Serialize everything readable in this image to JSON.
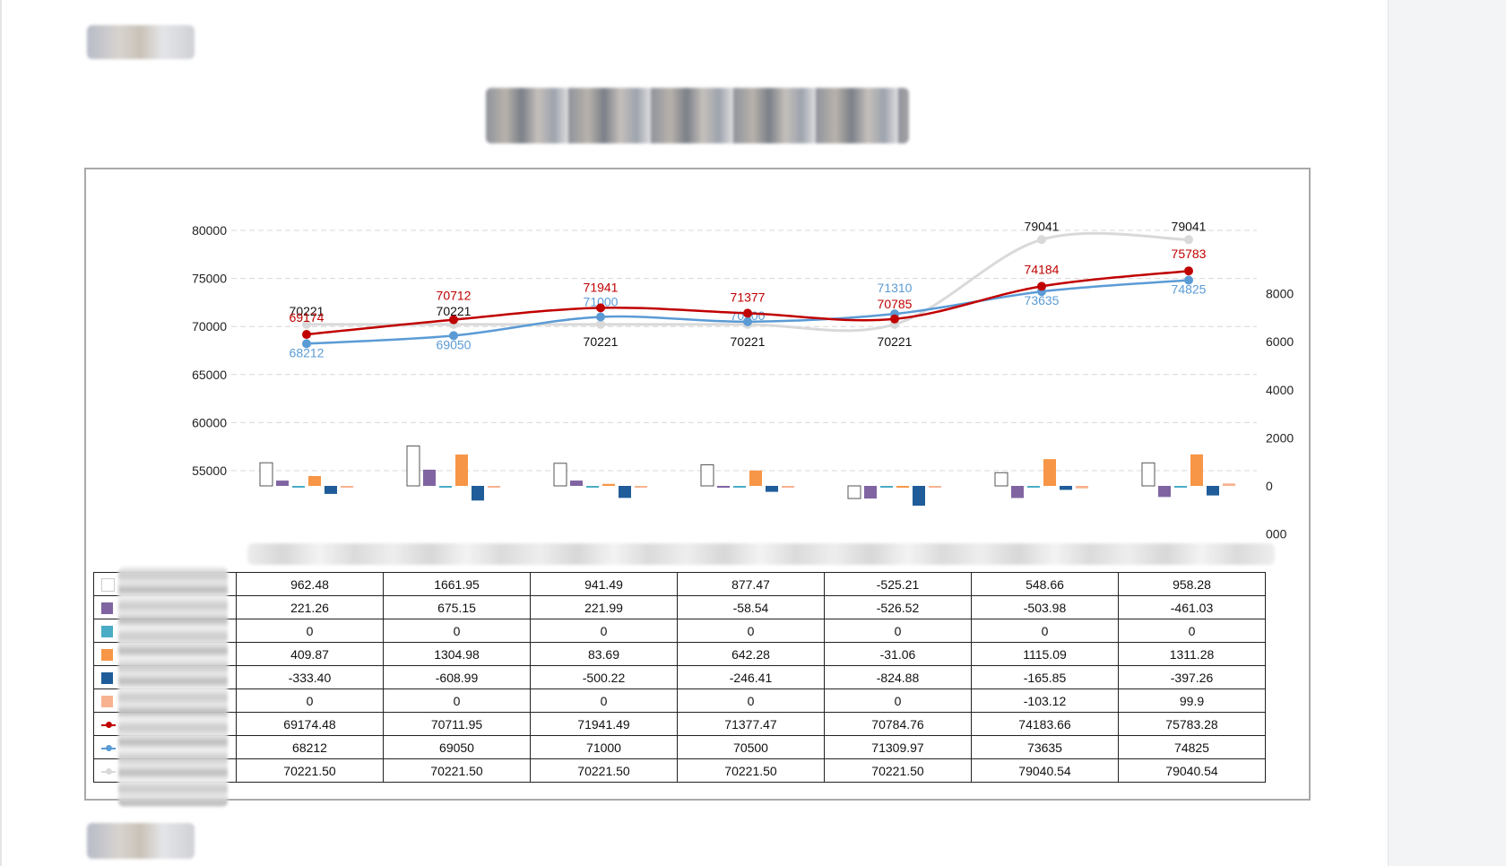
{
  "colors": {
    "series_outline": "#555555",
    "purple": "#8064a2",
    "cyan": "#4bacc6",
    "orange": "#f79646",
    "navy": "#1f5c99",
    "salmon": "#f8b290",
    "red_line": "#c00000",
    "blue_line": "#5b9bd5",
    "gray_line": "#d9d9d9"
  },
  "chart_data": {
    "type": "bar",
    "categories": [
      "",
      "",
      "",
      "",
      "",
      "",
      ""
    ],
    "y_left": {
      "ticks": [
        "80000",
        "75000",
        "70000",
        "65000",
        "60000",
        "55000"
      ],
      "range": [
        55000,
        80000
      ]
    },
    "y_right": {
      "ticks": [
        "8000",
        "6000",
        "4000",
        "2000",
        "0",
        "000"
      ],
      "range": [
        -2000,
        8000
      ]
    },
    "bar_series": [
      {
        "key": "white",
        "color_key": "white",
        "values": [
          962.48,
          1661.95,
          941.49,
          877.47,
          -525.21,
          548.66,
          958.28
        ],
        "labels": [
          "962.48",
          "1661.95",
          "941.49",
          "877.47",
          "-525.21",
          "548.66",
          "958.28"
        ]
      },
      {
        "key": "purple",
        "color_key": "purple",
        "values": [
          221.26,
          675.15,
          221.99,
          -58.54,
          -526.52,
          -503.98,
          -461.03
        ],
        "labels": [
          "221.26",
          "675.15",
          "221.99",
          "-58.54",
          "-526.52",
          "-503.98",
          "-461.03"
        ]
      },
      {
        "key": "cyan",
        "color_key": "cyan",
        "values": [
          0,
          0,
          0,
          0,
          0,
          0,
          0
        ],
        "labels": [
          "0",
          "0",
          "0",
          "0",
          "0",
          "0",
          "0"
        ]
      },
      {
        "key": "orange",
        "color_key": "orange",
        "values": [
          409.87,
          1304.98,
          83.69,
          642.28,
          -31.06,
          1115.09,
          1311.28
        ],
        "labels": [
          "409.87",
          "1304.98",
          "83.69",
          "642.28",
          "-31.06",
          "1115.09",
          "1311.28"
        ]
      },
      {
        "key": "navy",
        "color_key": "navy",
        "values": [
          -333.4,
          -608.99,
          -500.22,
          -246.41,
          -824.88,
          -165.85,
          -397.26
        ],
        "labels": [
          "-333.40",
          "-608.99",
          "-500.22",
          "-246.41",
          "-824.88",
          "-165.85",
          "-397.26"
        ]
      },
      {
        "key": "salmon",
        "color_key": "salmon",
        "values": [
          0,
          0,
          0,
          0,
          0,
          -103.12,
          99.9
        ],
        "labels": [
          "0",
          "0",
          "0",
          "0",
          "0",
          "-103.12",
          "99.9"
        ]
      }
    ],
    "line_series": [
      {
        "key": "red",
        "color_key": "red_line",
        "values": [
          69174.48,
          70711.95,
          71941.49,
          71377.47,
          70784.76,
          74183.66,
          75783.28
        ],
        "labels": [
          "69174.48",
          "70711.95",
          "71941.49",
          "71377.47",
          "70784.76",
          "74183.66",
          "75783.28"
        ],
        "point_labels": [
          "69174",
          "70712",
          "71941",
          "71377",
          "70785",
          "74184",
          "75783"
        ]
      },
      {
        "key": "blue",
        "color_key": "blue_line",
        "values": [
          68212,
          69050,
          71000,
          70500,
          71309.97,
          73635,
          74825
        ],
        "labels": [
          "68212",
          "69050",
          "71000",
          "70500",
          "71309.97",
          "73635",
          "74825"
        ],
        "point_labels": [
          "68212",
          "69050",
          "71000",
          "70500",
          "71310",
          "73635",
          "74825"
        ]
      },
      {
        "key": "gray",
        "color_key": "gray_line",
        "values": [
          70221.5,
          70221.5,
          70221.5,
          70221.5,
          70221.5,
          79040.54,
          79040.54
        ],
        "labels": [
          "70221.50",
          "70221.50",
          "70221.50",
          "70221.50",
          "70221.50",
          "79040.54",
          "79040.54"
        ],
        "point_labels": [
          "70221",
          "70221",
          "70221",
          "70221",
          "70221",
          "79041",
          "79041"
        ]
      }
    ]
  }
}
